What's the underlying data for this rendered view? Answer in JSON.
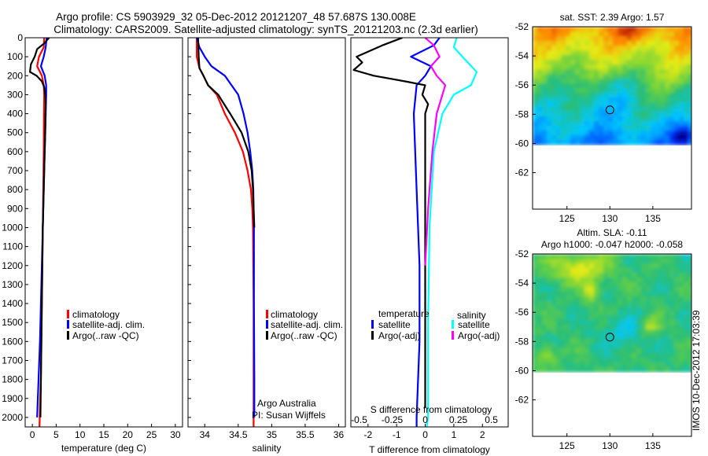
{
  "header": {
    "line1": "Argo profile: CS 5903929_32 05-Dec-2012 20121207_48 57.687S 130.008E",
    "line2": "Climatology: CARS2009. Satellite-adjusted climatology: synTS_20121203.nc (2.3d earlier)"
  },
  "colors": {
    "climatology": "#ff0000",
    "satellite": "#0000ff",
    "argo": "#000000",
    "satellite_salinity": "#00ffff",
    "argo_salinity_diff": "#ff00ff"
  },
  "depth_axis": {
    "ticks": [
      "0",
      "100",
      "200",
      "300",
      "400",
      "500",
      "600",
      "700",
      "800",
      "900",
      "1000",
      "1100",
      "1200",
      "1300",
      "1400",
      "1500",
      "1600",
      "1700",
      "1800",
      "1900",
      "2000"
    ],
    "range": [
      0,
      2050
    ],
    "reversed": true
  },
  "chart_data": [
    {
      "type": "line",
      "id": "temperature",
      "xlabel": "temperature (deg C)",
      "xlim": [
        -1.5,
        31.5
      ],
      "xticks": [
        "0",
        "5",
        "10",
        "15",
        "20",
        "25",
        "30"
      ],
      "legend": [
        "climatology",
        "satellite-adj. clim.",
        "Argo(..raw -QC)"
      ],
      "series": [
        {
          "name": "climatology",
          "color": "#ff0000",
          "x": [
            2.5,
            2.4,
            1.4,
            1.0,
            2.0,
            2.4,
            2.5,
            2.45,
            2.4,
            2.3,
            2.2,
            2.1,
            2.0,
            1.9,
            1.8,
            1.6,
            1.5
          ],
          "y": [
            0,
            50,
            100,
            150,
            200,
            250,
            300,
            400,
            600,
            800,
            1000,
            1200,
            1400,
            1600,
            1800,
            1950,
            2050
          ]
        },
        {
          "name": "satellite-adj. clim.",
          "color": "#0000ff",
          "x": [
            3.0,
            2.8,
            2.4,
            1.8,
            2.6,
            2.9,
            2.9,
            2.8,
            2.6,
            2.4,
            2.2,
            2.0,
            1.8,
            1.6,
            1.3,
            1.0
          ],
          "y": [
            0,
            50,
            100,
            150,
            200,
            250,
            300,
            400,
            600,
            800,
            1000,
            1200,
            1400,
            1600,
            1800,
            2000
          ]
        },
        {
          "name": "Argo(..raw -QC)",
          "color": "#000000",
          "x": [
            3.5,
            2.5,
            1.0,
            0.5,
            -0.3,
            -0.5,
            0.9,
            2.0,
            2.5,
            2.7,
            2.8,
            2.75,
            2.7,
            2.6,
            2.5,
            2.4,
            2.3,
            2.2,
            2.1,
            2.0,
            1.9,
            1.8,
            1.7
          ],
          "y": [
            0,
            30,
            60,
            100,
            140,
            180,
            200,
            230,
            260,
            300,
            350,
            400,
            500,
            600,
            700,
            800,
            900,
            1000,
            1200,
            1400,
            1600,
            1800,
            2000
          ]
        }
      ]
    },
    {
      "type": "line",
      "id": "salinity",
      "xlabel": "salinity",
      "xlim": [
        33.75,
        36.1
      ],
      "xticks": [
        "34",
        "34.5",
        "35",
        "35.5",
        "36"
      ],
      "legend": [
        "climatology",
        "satellite-adj. clim.",
        "Argo(..raw -QC)"
      ],
      "annotation": [
        "Argo Australia",
        "PI: Susan Wijffels"
      ],
      "series": [
        {
          "name": "climatology",
          "color": "#ff0000",
          "x": [
            33.88,
            33.88,
            33.92,
            33.98,
            34.05,
            34.18,
            34.3,
            34.45,
            34.57,
            34.64,
            34.69,
            34.71,
            34.72,
            34.725,
            34.73,
            34.73,
            34.73,
            34.73,
            34.73
          ],
          "y": [
            0,
            100,
            160,
            200,
            250,
            300,
            400,
            500,
            600,
            700,
            800,
            900,
            1000,
            1200,
            1400,
            1600,
            1800,
            2000,
            2050
          ]
        },
        {
          "name": "satellite-adj. clim.",
          "color": "#0000ff",
          "x": [
            33.88,
            33.92,
            34.0,
            34.1,
            34.3,
            34.4,
            34.5,
            34.58,
            34.64,
            34.68,
            34.71,
            34.725,
            34.73,
            34.735,
            34.735,
            34.74,
            34.74
          ],
          "y": [
            0,
            50,
            100,
            150,
            200,
            250,
            300,
            400,
            500,
            600,
            700,
            800,
            900,
            1000,
            1400,
            1800,
            2000
          ]
        },
        {
          "name": "Argo(..raw -QC)",
          "color": "#000000",
          "x": [
            33.9,
            33.91,
            33.92,
            33.98,
            34.05,
            34.2,
            34.38,
            34.55,
            34.65,
            34.7,
            34.72,
            34.73,
            34.74
          ],
          "y": [
            0,
            100,
            160,
            200,
            250,
            300,
            400,
            500,
            600,
            700,
            800,
            900,
            1000
          ]
        }
      ]
    },
    {
      "type": "line",
      "id": "difference",
      "xlabel": "T difference from climatology",
      "xlabel_top": "S difference from climatology",
      "xlim": [
        -2.6,
        2.9
      ],
      "xticks": [
        "-2",
        "-1",
        "0",
        "1",
        "2"
      ],
      "xticks_top": [
        "-0.5",
        "-0.25",
        "0",
        "0.25",
        "0.5"
      ],
      "legend_left_title": "temperature",
      "legend_right_title": "salinity",
      "legend_left": [
        "satellite",
        "Argo(-adj)"
      ],
      "legend_right": [
        "satellite",
        "Argo(-adj)"
      ],
      "series": [
        {
          "name": "satellite",
          "group": "temperature",
          "color": "#0000ff",
          "x": [
            0.5,
            0.3,
            -0.5,
            0.2,
            0.0,
            -0.3,
            -0.4,
            -0.3,
            -0.2,
            -0.2,
            -0.3,
            -0.3
          ],
          "y": [
            0,
            40,
            100,
            150,
            200,
            250,
            400,
            800,
            1200,
            1600,
            2000,
            2050
          ]
        },
        {
          "name": "Argo(-adj)",
          "group": "temperature",
          "color": "#000000",
          "x": [
            -0.8,
            -1.5,
            -2.4,
            -2.2,
            -2.5,
            -1.8,
            -0.7,
            0.0,
            -0.1,
            0.1,
            0.0,
            0.0,
            0.0,
            0.0
          ],
          "y": [
            0,
            40,
            100,
            130,
            170,
            200,
            230,
            250,
            300,
            350,
            400,
            800,
            1600,
            1950
          ]
        },
        {
          "name": "satellite",
          "group": "salinity",
          "color": "#00ffff",
          "x": [
            1.1,
            1.0,
            1.3,
            1.8,
            1.6,
            1.0,
            0.6,
            0.3,
            0.15,
            0.1,
            0.1,
            0.05
          ],
          "y": [
            0,
            50,
            100,
            180,
            250,
            300,
            400,
            600,
            1000,
            1500,
            2000,
            2050
          ]
        },
        {
          "name": "Argo(-adj)",
          "group": "salinity",
          "color": "#ff00ff",
          "x": [
            0.0,
            0.3,
            0.5,
            0.2,
            0.4,
            0.7,
            0.6,
            0.4,
            0.25,
            0.1,
            0.0
          ],
          "y": [
            0,
            40,
            100,
            150,
            200,
            250,
            300,
            400,
            600,
            900,
            1200
          ]
        }
      ]
    },
    {
      "type": "heatmap",
      "id": "sst-map",
      "title": "sat. SST: 2.39  Argo: 1.57",
      "xlim": [
        121,
        139.5
      ],
      "ylim": [
        -64.5,
        -52
      ],
      "xticks": [
        "125",
        "130",
        "135"
      ],
      "yticks": [
        "-52",
        "-54",
        "-56",
        "-58",
        "-60",
        "-62"
      ],
      "data_bottom_lat": -60,
      "marker": {
        "lon": 130.0,
        "lat": -57.7
      }
    },
    {
      "type": "heatmap",
      "id": "sla-map",
      "title": "Altim. SLA: -0.11",
      "subtitle": "Argo h1000: -0.047  h2000: -0.058",
      "xlim": [
        121,
        139.5
      ],
      "ylim": [
        -64.5,
        -52
      ],
      "xticks": [
        "125",
        "130",
        "135"
      ],
      "yticks": [
        "-52",
        "-54",
        "-56",
        "-58",
        "-60",
        "-62"
      ],
      "data_bottom_lat": -60,
      "marker": {
        "lon": 130.0,
        "lat": -57.7
      }
    }
  ],
  "footer_stamp": "IMOS 10-Dec-2012 17:03:39"
}
